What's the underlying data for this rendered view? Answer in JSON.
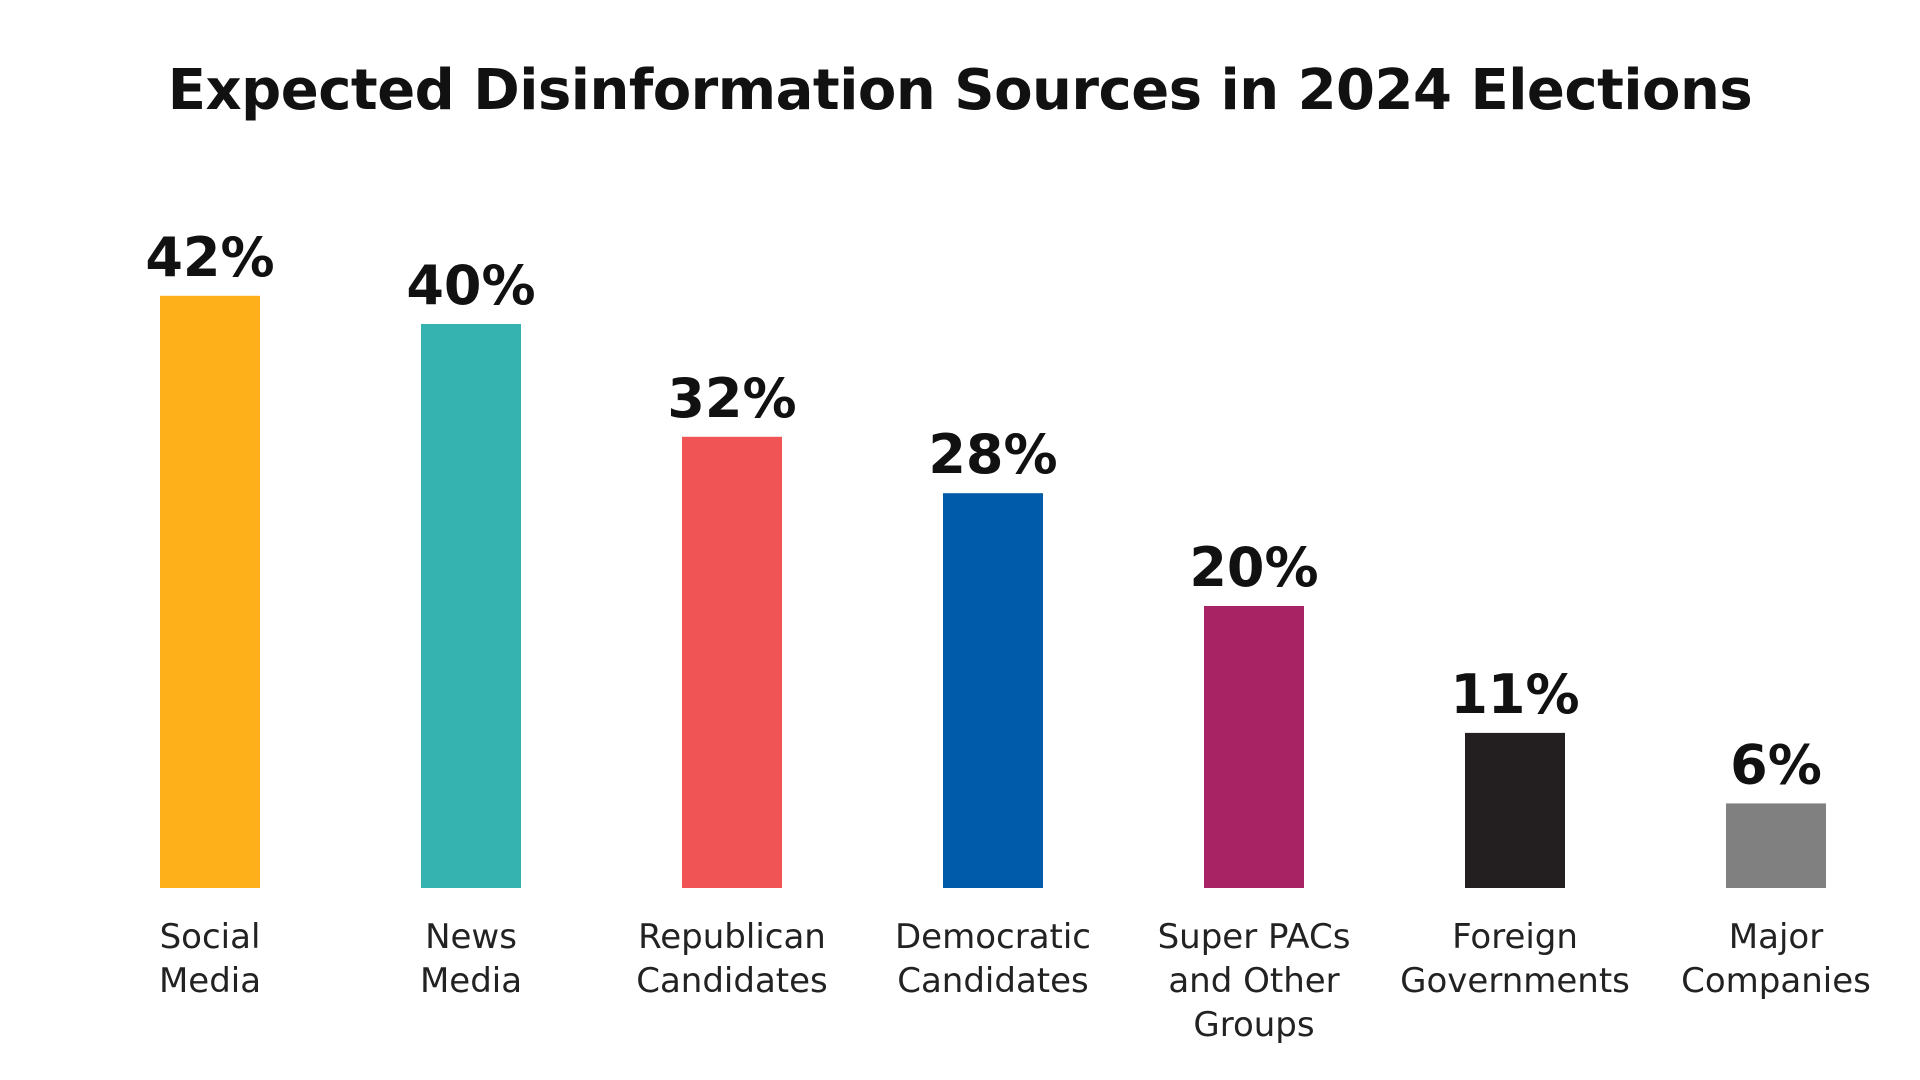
{
  "chart_data": {
    "type": "bar",
    "title": "Expected  Disinformation Sources in 2024 Elections",
    "xlabel": "",
    "ylabel": "",
    "ylim": [
      0,
      45
    ],
    "grid": false,
    "legend": "none",
    "categories": [
      [
        "Social",
        "Media"
      ],
      [
        "News",
        "Media"
      ],
      [
        "Republican",
        "Candidates"
      ],
      [
        "Democratic",
        "Candidates"
      ],
      [
        "Super PACs",
        "and Other",
        "Groups"
      ],
      [
        "Foreign",
        "Governments"
      ],
      [
        "Major",
        "Companies"
      ]
    ],
    "values": [
      42,
      40,
      32,
      28,
      20,
      11,
      6
    ],
    "value_labels": [
      "42%",
      "40%",
      "32%",
      "28%",
      "20%",
      "11%",
      "6%"
    ],
    "colors": [
      "#FDB019",
      "#35B3B1",
      "#F05454",
      "#005CAB",
      "#A82363",
      "#231F20",
      "#808080"
    ]
  }
}
